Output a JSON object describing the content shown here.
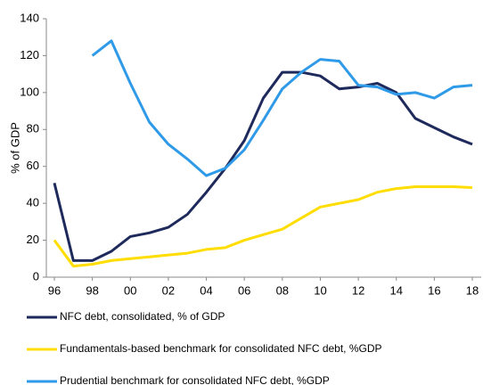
{
  "chart_data": {
    "type": "line",
    "y_label": "% of GDP",
    "categories": [
      "96",
      null,
      "98",
      null,
      "00",
      null,
      "02",
      null,
      "04",
      null,
      "06",
      null,
      "08",
      null,
      "10",
      null,
      "12",
      null,
      "14",
      null,
      "16",
      null,
      "18"
    ],
    "series": [
      {
        "name": "NFC debt, consolidated,  % of GDP",
        "color": "#1f2a5c",
        "values": [
          51,
          9,
          9,
          14,
          22,
          24,
          27,
          34,
          46,
          59,
          74,
          97,
          111,
          111,
          109,
          102,
          103,
          105,
          100,
          86,
          81,
          76,
          72
        ]
      },
      {
        "name": "Fundamentals-based benchmark for consolidated NFC debt, %GDP",
        "color": "#ffdd00",
        "values": [
          20,
          6,
          7,
          9,
          10,
          11,
          12,
          13,
          15,
          16,
          20,
          23,
          26,
          32,
          38,
          40,
          42,
          46,
          48,
          49,
          49,
          49,
          48.5
        ]
      },
      {
        "name": "Prudential benchmark for consolidated NFC debt, %GDP",
        "color": "#2f9ae8",
        "values": [
          null,
          null,
          120,
          128,
          105,
          84,
          72,
          64,
          55,
          59,
          69,
          85,
          102,
          111,
          118,
          117,
          104,
          103,
          99,
          100,
          97,
          103,
          104
        ]
      }
    ],
    "ylim": [
      0,
      140
    ],
    "yticks": [
      0,
      20,
      40,
      60,
      80,
      100,
      120,
      140
    ],
    "grid": false
  }
}
